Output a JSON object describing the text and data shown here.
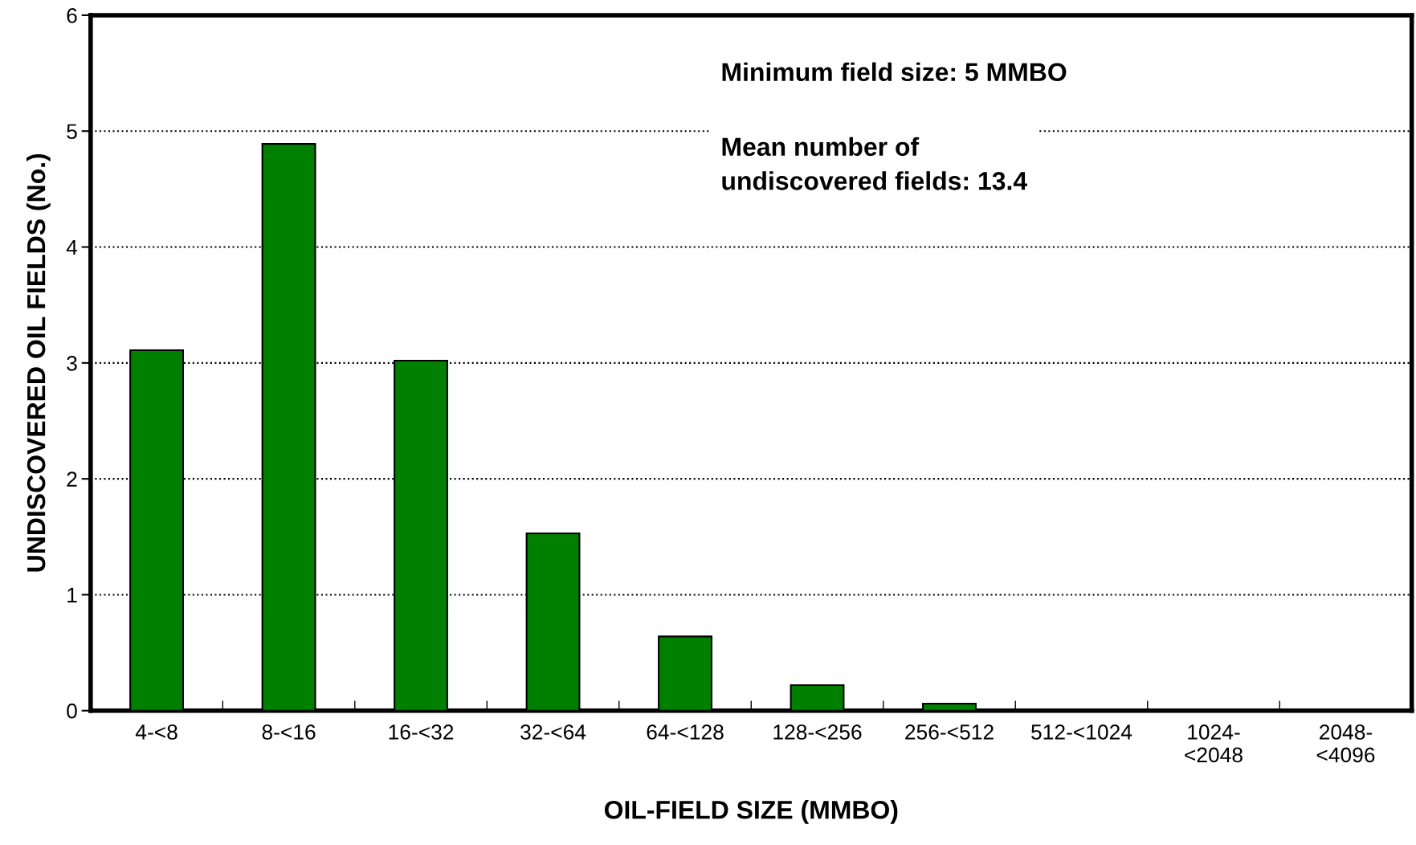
{
  "chart_data": {
    "type": "bar",
    "xlabel": "OIL-FIELD SIZE (MMBO)",
    "ylabel": "UNDISCOVERED OIL FIELDS (No.)",
    "categories": [
      "4-<8",
      "8-<16",
      "16-<32",
      "32-<64",
      "64-<128",
      "128-<256",
      "256-<512",
      "512-<1024",
      "1024-\n<2048",
      "2048-\n<4096"
    ],
    "values": [
      3.11,
      4.89,
      3.02,
      1.53,
      0.64,
      0.22,
      0.06,
      0,
      0,
      0
    ],
    "color": "#008000",
    "ylim": [
      0,
      6
    ],
    "yticks": [
      0,
      1,
      2,
      3,
      4,
      5,
      6
    ],
    "grid": "y",
    "line_style": "dotted",
    "annotations": [
      "Minimum field size: 5 MMBO",
      "Mean number of\nundiscovered fields: 13.4"
    ]
  }
}
